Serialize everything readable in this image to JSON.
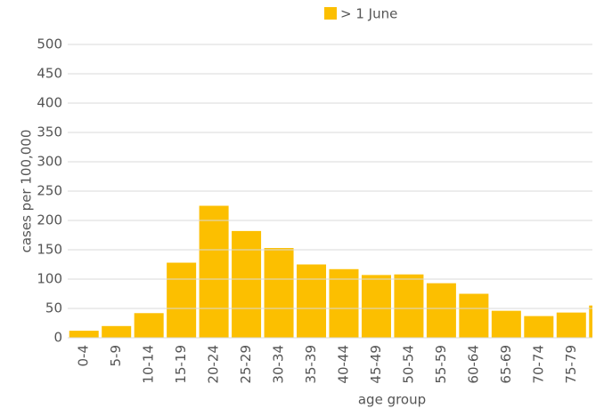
{
  "chart_data": {
    "type": "bar",
    "categories": [
      "0-4",
      "5-9",
      "10-14",
      "15-19",
      "20-24",
      "25-29",
      "30-34",
      "35-39",
      "40-44",
      "45-49",
      "50-54",
      "55-59",
      "60-64",
      "65-69",
      "70-74",
      "75-79",
      null
    ],
    "series": [
      {
        "name": "> 1 June",
        "color": "#fcbf00",
        "values": [
          12,
          20,
          42,
          128,
          225,
          182,
          153,
          125,
          117,
          107,
          108,
          93,
          75,
          46,
          37,
          43,
          55
        ]
      }
    ],
    "xlabel": "age group",
    "ylabel": "cases per 100,000",
    "ylim": [
      0,
      500
    ],
    "yticks": [
      0,
      50,
      100,
      150,
      200,
      250,
      300,
      350,
      400,
      450,
      500
    ],
    "grid": true,
    "legend": "top"
  }
}
